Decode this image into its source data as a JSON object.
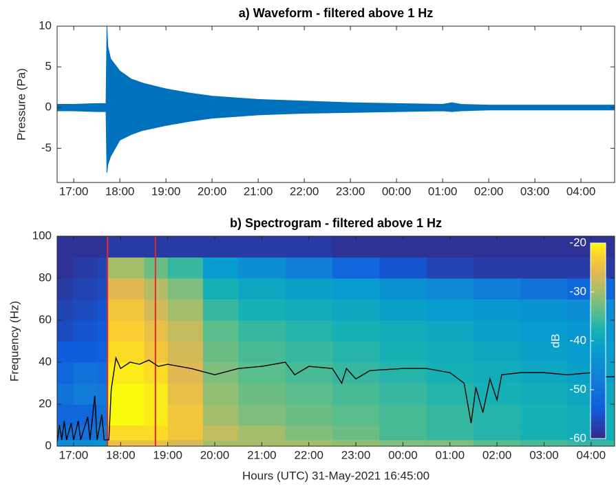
{
  "chart_data": [
    {
      "type": "area",
      "title": "a) Waveform - filtered above 1 Hz",
      "y_label": "Pressure (Pa)",
      "x": [
        16.64,
        17.0,
        17.5,
        17.7,
        17.72,
        17.74,
        17.8,
        18.0,
        18.25,
        18.5,
        19.0,
        19.5,
        20.0,
        20.5,
        21.0,
        22.0,
        23.0,
        24.0,
        25.0,
        25.2,
        25.4,
        26.0,
        27.0,
        28.0,
        28.73
      ],
      "series": [
        {
          "color": "#0072bd",
          "values": [
            0.4,
            0.4,
            0.5,
            0.5,
            10,
            7.5,
            6,
            4.5,
            3.5,
            3,
            2.3,
            1.8,
            1.4,
            1.2,
            1,
            0.8,
            0.6,
            0.5,
            0.4,
            0.6,
            0.4,
            0.3,
            0.3,
            0.3,
            0.3
          ]
        },
        {
          "color": "#0072bd",
          "values": [
            -0.4,
            -0.4,
            -0.5,
            -0.5,
            -8,
            -7,
            -6,
            -4,
            -3.3,
            -2.8,
            -2.2,
            -1.7,
            -1.3,
            -1.1,
            -0.9,
            -0.7,
            -0.6,
            -0.5,
            -0.4,
            -0.5,
            -0.4,
            -0.3,
            -0.3,
            -0.3,
            -0.3
          ]
        }
      ],
      "xlim": [
        16.64,
        28.73
      ],
      "ylim": [
        -9.2,
        10
      ],
      "xticks": [
        {
          "value": 17,
          "label": "17:00"
        },
        {
          "value": 18,
          "label": "18:00"
        },
        {
          "value": 19,
          "label": "19:00"
        },
        {
          "value": 20,
          "label": "20:00"
        },
        {
          "value": 21,
          "label": "21:00"
        },
        {
          "value": 22,
          "label": "22:00"
        },
        {
          "value": 23,
          "label": "23:00"
        },
        {
          "value": 24,
          "label": "00:00"
        },
        {
          "value": 25,
          "label": "01:00"
        },
        {
          "value": 26,
          "label": "02:00"
        },
        {
          "value": 27,
          "label": "03:00"
        },
        {
          "value": 28,
          "label": "04:00"
        }
      ],
      "yticks": [
        -5,
        0,
        5,
        10
      ]
    },
    {
      "type": "heatmap",
      "title": "b) Spectrogram - filtered above 1 Hz",
      "x_label": "Hours (UTC) 31-May-2021 16:45:00",
      "y_label": "Frequency (Hz)",
      "x_edges": [
        16.65,
        17.0,
        17.5,
        17.72,
        18.5,
        19.0,
        19.75,
        20.5,
        21.5,
        22.5,
        23.5,
        24.5,
        25.5,
        26.5,
        27.5,
        28.5
      ],
      "y_edges": [
        0,
        3,
        10,
        20,
        30,
        40,
        50,
        60,
        70,
        80,
        90,
        100
      ],
      "z": [
        [
          -45,
          -50,
          -52,
          -50,
          -52,
          -54,
          -56,
          -57,
          -58,
          -59,
          -59
        ],
        [
          -45,
          -50,
          -52,
          -48,
          -50,
          -54,
          -55,
          -56,
          -57,
          -58,
          -59
        ],
        [
          -44,
          -48,
          -50,
          -49,
          -51,
          -53,
          -54,
          -55,
          -56,
          -57,
          -59
        ],
        [
          -25,
          -22,
          -20,
          -20,
          -21,
          -22,
          -23,
          -24,
          -26,
          -30,
          -58
        ],
        [
          -25,
          -22,
          -21,
          -21,
          -22,
          -24,
          -25,
          -27,
          -29,
          -33,
          -58
        ],
        [
          -27,
          -24,
          -24,
          -25,
          -26,
          -27,
          -28,
          -30,
          -32,
          -36,
          -58
        ],
        [
          -30,
          -28,
          -30,
          -31,
          -32,
          -33,
          -34,
          -36,
          -38,
          -42,
          -58
        ],
        [
          -30,
          -30,
          -32,
          -33,
          -34,
          -35,
          -36,
          -38,
          -40,
          -45,
          -58
        ],
        [
          -30,
          -32,
          -33,
          -34,
          -35,
          -36,
          -37,
          -39,
          -41,
          -48,
          -58
        ],
        [
          -31,
          -33,
          -34,
          -35,
          -36,
          -37,
          -38,
          -40,
          -42,
          -52,
          -59
        ],
        [
          -32,
          -35,
          -35,
          -36,
          -37,
          -38,
          -39,
          -41,
          -44,
          -55,
          -59
        ],
        [
          -32,
          -36,
          -36,
          -37,
          -38,
          -39,
          -40,
          -42,
          -46,
          -57,
          -59
        ],
        [
          -34,
          -37,
          -37,
          -38,
          -39,
          -40,
          -41,
          -43,
          -48,
          -58,
          -59
        ],
        [
          -35,
          -38,
          -38,
          -39,
          -40,
          -41,
          -42,
          -44,
          -50,
          -58,
          -59
        ],
        [
          -36,
          -39,
          -39,
          -40,
          -41,
          -42,
          -43,
          -45,
          -52,
          -58,
          -59
        ]
      ],
      "clim": [
        -60,
        -20
      ],
      "colorbar_ticks": [
        -60,
        -50,
        -40,
        -30,
        -20
      ],
      "colorbar_label": "dB",
      "colormap": "parula",
      "line": {
        "color": "#000000",
        "x": [
          16.65,
          16.7,
          16.75,
          16.8,
          16.85,
          16.95,
          17.0,
          17.1,
          17.15,
          17.3,
          17.35,
          17.45,
          17.5,
          17.6,
          17.65,
          17.75,
          17.8,
          17.9,
          18.0,
          18.2,
          18.4,
          18.6,
          18.8,
          19.0,
          19.5,
          20.0,
          20.5,
          21.0,
          21.5,
          21.7,
          22.0,
          22.5,
          22.7,
          22.8,
          23.0,
          23.3,
          24.0,
          24.5,
          25.0,
          25.3,
          25.45,
          25.55,
          25.7,
          25.85,
          26.0,
          26.1,
          26.5,
          27.0,
          27.5,
          28.0,
          28.2,
          28.5
        ],
        "y": [
          2,
          10,
          3,
          12,
          3,
          11,
          3,
          12,
          3,
          14,
          3,
          24,
          3,
          15,
          3,
          3,
          27,
          42,
          37,
          40,
          39,
          41,
          38,
          39,
          37,
          34,
          37,
          38,
          40,
          34,
          38,
          37,
          30,
          37,
          32,
          36,
          37,
          37,
          35,
          30,
          11,
          28,
          16,
          32,
          22,
          34,
          35,
          35,
          34,
          35,
          33,
          33
        ]
      },
      "vlines": {
        "color": "#e8262b",
        "x": [
          17.72,
          18.74
        ]
      },
      "xlim": [
        16.65,
        28.5
      ],
      "ylim": [
        0,
        100
      ],
      "xticks": [
        {
          "value": 17,
          "label": "17:00"
        },
        {
          "value": 18,
          "label": "18:00"
        },
        {
          "value": 19,
          "label": "19:00"
        },
        {
          "value": 20,
          "label": "20:00"
        },
        {
          "value": 21,
          "label": "21:00"
        },
        {
          "value": 22,
          "label": "22:00"
        },
        {
          "value": 23,
          "label": "23:00"
        },
        {
          "value": 24,
          "label": "00:00"
        },
        {
          "value": 25,
          "label": "01:00"
        },
        {
          "value": 26,
          "label": "02:00"
        },
        {
          "value": 27,
          "label": "03:00"
        },
        {
          "value": 28,
          "label": "04:00"
        }
      ],
      "yticks": [
        0,
        20,
        40,
        60,
        80,
        100
      ]
    }
  ]
}
